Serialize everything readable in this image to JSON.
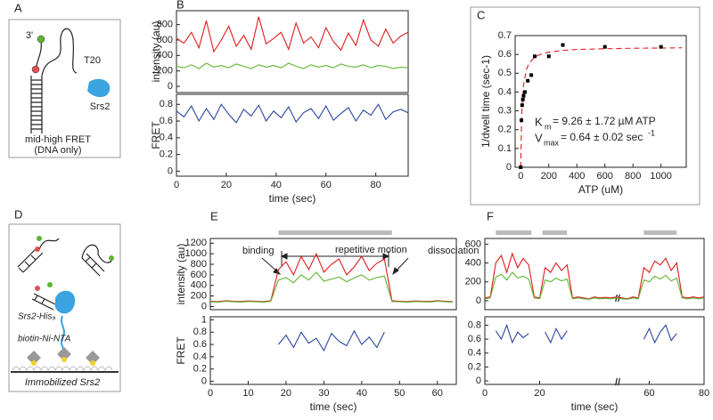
{
  "diagrams": [
    {
      "panel": "A",
      "texts": [
        "3'",
        "T20",
        "Srs2",
        "mid-high FRET",
        "(DNA only)"
      ]
    },
    {
      "panel": "D",
      "texts": [
        "Srs2-His₉",
        "biotin-Ni-NTA",
        "Immobilized Srs2"
      ]
    }
  ],
  "chart_data": [
    {
      "type": "line",
      "panel": "B",
      "ylabel": "intensity (au)",
      "x": [
        0,
        3,
        6,
        9,
        12,
        15,
        18,
        21,
        24,
        27,
        30,
        33,
        36,
        39,
        42,
        45,
        48,
        51,
        54,
        57,
        60,
        63,
        66,
        69,
        72,
        75,
        78,
        81,
        84,
        87,
        90,
        93
      ],
      "series": [
        {
          "color": "#e01b1b",
          "values": [
            620,
            560,
            700,
            500,
            850,
            450,
            600,
            780,
            520,
            660,
            480,
            900,
            550,
            620,
            700,
            480,
            820,
            560,
            640,
            500,
            760,
            580,
            470,
            690,
            530,
            860,
            600,
            520,
            740,
            560,
            650,
            700
          ]
        },
        {
          "color": "#5db531",
          "values": [
            260,
            240,
            280,
            230,
            300,
            250,
            270,
            240,
            290,
            260,
            230,
            280,
            250,
            270,
            240,
            300,
            260,
            230,
            280,
            250,
            270,
            240,
            290,
            260,
            250,
            280,
            240,
            270,
            260,
            230,
            250,
            240
          ]
        }
      ],
      "xlim": [
        0,
        93
      ],
      "ylim": [
        -80,
        980
      ],
      "yticks": [
        0,
        200,
        400,
        600,
        800
      ]
    },
    {
      "type": "line",
      "ylabel": "FRET",
      "xlabel": "time (sec)",
      "x": [
        0,
        3,
        6,
        9,
        12,
        15,
        18,
        21,
        24,
        27,
        30,
        33,
        36,
        39,
        42,
        45,
        48,
        51,
        54,
        57,
        60,
        63,
        66,
        69,
        72,
        75,
        78,
        81,
        84,
        87,
        90,
        93
      ],
      "series": [
        {
          "color": "#2b45a0",
          "values": [
            0.72,
            0.65,
            0.78,
            0.6,
            0.75,
            0.62,
            0.8,
            0.68,
            0.58,
            0.74,
            0.66,
            0.79,
            0.6,
            0.72,
            0.64,
            0.77,
            0.59,
            0.7,
            0.75,
            0.63,
            0.78,
            0.61,
            0.69,
            0.76,
            0.6,
            0.73,
            0.67,
            0.8,
            0.62,
            0.71,
            0.74,
            0.7
          ]
        }
      ],
      "xlim": [
        0,
        93
      ],
      "xticks": [
        0,
        20,
        40,
        60,
        80
      ],
      "ylim": [
        -0.06,
        0.92
      ],
      "yticks": [
        0,
        0.2,
        0.4,
        0.6,
        0.8
      ]
    },
    {
      "type": "scatter",
      "panel": "C",
      "ylabel": "1/dwell time (sec-1)",
      "xlabel": "ATP (uM)",
      "series": [
        {
          "color": "#000000",
          "x": [
            0,
            5,
            10,
            15,
            20,
            30,
            50,
            75,
            100,
            200,
            300,
            600,
            1000
          ],
          "values": [
            0,
            0.25,
            0.33,
            0.36,
            0.38,
            0.4,
            0.46,
            0.49,
            0.59,
            0.59,
            0.65,
            0.64,
            0.64
          ]
        }
      ],
      "fit": {
        "color": "#e01b1b",
        "x": [
          0,
          5,
          10,
          20,
          40,
          60,
          100,
          150,
          200,
          300,
          400,
          600,
          800,
          1000,
          1150
        ],
        "values": [
          0,
          0.224,
          0.332,
          0.437,
          0.52,
          0.555,
          0.586,
          0.603,
          0.612,
          0.621,
          0.626,
          0.63,
          0.633,
          0.634,
          0.635
        ]
      },
      "annotations": [
        "K",
        "m",
        "= 9.26 ± 1.72 µM ATP",
        "V",
        "max",
        "= 0.64 ± 0.02 sec",
        "-1"
      ],
      "xlim": [
        -40,
        1180
      ],
      "xticks": [
        0,
        200,
        400,
        600,
        800,
        1000
      ],
      "ylim": [
        0,
        0.7
      ],
      "yticks": [
        0,
        0.1,
        0.2,
        0.3,
        0.4,
        0.5,
        0.6,
        0.7
      ]
    },
    {
      "type": "line",
      "panel": "E",
      "ylabel": "intensity (au)",
      "x": [
        0,
        2,
        4,
        6,
        8,
        10,
        12,
        14,
        16,
        18,
        20,
        22,
        24,
        26,
        28,
        30,
        32,
        34,
        36,
        38,
        40,
        42,
        44,
        46,
        48,
        50,
        52,
        54,
        56,
        58,
        60,
        62,
        64
      ],
      "series": [
        {
          "color": "#e01b1b",
          "values": [
            100,
            90,
            110,
            100,
            95,
            105,
            100,
            90,
            110,
            700,
            850,
            600,
            950,
            700,
            1000,
            650,
            800,
            900,
            600,
            750,
            950,
            680,
            820,
            900,
            110,
            100,
            90,
            105,
            100,
            95,
            110,
            100,
            90
          ]
        },
        {
          "color": "#5db531",
          "values": [
            90,
            80,
            100,
            90,
            85,
            95,
            90,
            80,
            100,
            500,
            550,
            450,
            600,
            500,
            650,
            480,
            520,
            560,
            470,
            540,
            600,
            500,
            550,
            580,
            95,
            90,
            80,
            95,
            90,
            85,
            100,
            90,
            80
          ]
        }
      ],
      "highlight": {
        "color": "#bbbbbb",
        "spans": [
          [
            18,
            48
          ]
        ]
      },
      "annotations": [
        "binding",
        "repetitive motion",
        "dissociation"
      ],
      "xlim": [
        0,
        65
      ],
      "ylim": [
        -60,
        1290
      ],
      "yticks": [
        0,
        200,
        400,
        600,
        800,
        1000,
        1200
      ]
    },
    {
      "type": "line",
      "ylabel": "FRET",
      "xlabel": "time (sec)",
      "x": [
        0,
        2,
        4,
        6,
        8,
        10,
        12,
        14,
        16,
        18,
        20,
        22,
        24,
        26,
        28,
        30,
        32,
        34,
        36,
        38,
        40,
        42,
        44,
        46,
        48,
        50,
        52,
        54,
        56,
        58,
        60,
        62,
        64
      ],
      "series": [
        {
          "color": "#2b45a0",
          "values": [
            null,
            null,
            null,
            null,
            null,
            null,
            null,
            null,
            null,
            0.6,
            0.75,
            0.55,
            0.8,
            0.62,
            0.7,
            0.5,
            0.78,
            0.65,
            0.58,
            0.82,
            0.6,
            0.72,
            0.55,
            0.8,
            null,
            null,
            null,
            null,
            null,
            null,
            null,
            null,
            null
          ]
        }
      ],
      "xlim": [
        0,
        65
      ],
      "xticks": [
        0,
        10,
        20,
        30,
        40,
        50,
        60
      ],
      "ylim": [
        -0.05,
        1.05
      ],
      "yticks": [
        0,
        0.2,
        0.4,
        0.6,
        0.8,
        1
      ]
    },
    {
      "type": "line",
      "panel": "F",
      "x": [
        0,
        2,
        4,
        6,
        8,
        10,
        12,
        14,
        16,
        18,
        20,
        22,
        24,
        26,
        28,
        30,
        32,
        34,
        36,
        38,
        40,
        42,
        44,
        46,
        48,
        50,
        52,
        54,
        56,
        58,
        60,
        62,
        64,
        66,
        68,
        70,
        72,
        74,
        76,
        78,
        80
      ],
      "series": [
        {
          "color": "#e01b1b",
          "values": [
            30,
            40,
            400,
            480,
            300,
            500,
            350,
            450,
            380,
            40,
            30,
            350,
            300,
            400,
            320,
            380,
            30,
            40,
            30,
            20,
            40,
            30,
            35,
            30,
            40,
            30,
            20,
            40,
            30,
            350,
            300,
            420,
            380,
            450,
            320,
            400,
            40,
            30,
            40,
            30,
            40
          ]
        },
        {
          "color": "#5db531",
          "values": [
            20,
            30,
            250,
            280,
            220,
            300,
            240,
            260,
            230,
            30,
            20,
            220,
            200,
            240,
            210,
            230,
            20,
            30,
            20,
            15,
            30,
            20,
            25,
            20,
            30,
            20,
            15,
            30,
            20,
            220,
            200,
            260,
            230,
            270,
            210,
            240,
            30,
            20,
            30,
            20,
            30
          ]
        }
      ],
      "highlight": {
        "color": "#bbbbbb",
        "spans": [
          [
            4,
            17
          ],
          [
            21,
            30
          ],
          [
            58,
            70
          ]
        ]
      },
      "xlim": [
        0,
        80
      ],
      "ylim": [
        -95,
        660
      ],
      "yticks": [
        0,
        200,
        400,
        600
      ]
    },
    {
      "type": "line",
      "xlabel": "time (sec)",
      "x": [
        0,
        2,
        4,
        6,
        8,
        10,
        12,
        14,
        16,
        18,
        20,
        22,
        24,
        26,
        28,
        30,
        32,
        34,
        36,
        38,
        40,
        42,
        44,
        46,
        48,
        50,
        52,
        54,
        56,
        58,
        60,
        62,
        64,
        66,
        68,
        70,
        72,
        74,
        76,
        78,
        80
      ],
      "series": [
        {
          "color": "#2b45a0",
          "values": [
            null,
            null,
            0.72,
            0.6,
            0.8,
            0.55,
            0.7,
            0.62,
            0.68,
            null,
            null,
            0.7,
            0.55,
            0.75,
            0.6,
            0.72,
            null,
            null,
            null,
            null,
            null,
            null,
            null,
            null,
            null,
            null,
            null,
            null,
            null,
            0.6,
            0.75,
            0.55,
            0.7,
            0.8,
            0.58,
            0.68,
            null,
            null,
            null,
            null,
            null
          ]
        }
      ],
      "xlim": [
        0,
        80
      ],
      "xticks": [
        0,
        20,
        60,
        80
      ],
      "ylim": [
        -0.05,
        0.92
      ],
      "yticks": [
        0,
        0.2,
        0.4,
        0.6,
        0.8
      ]
    }
  ]
}
